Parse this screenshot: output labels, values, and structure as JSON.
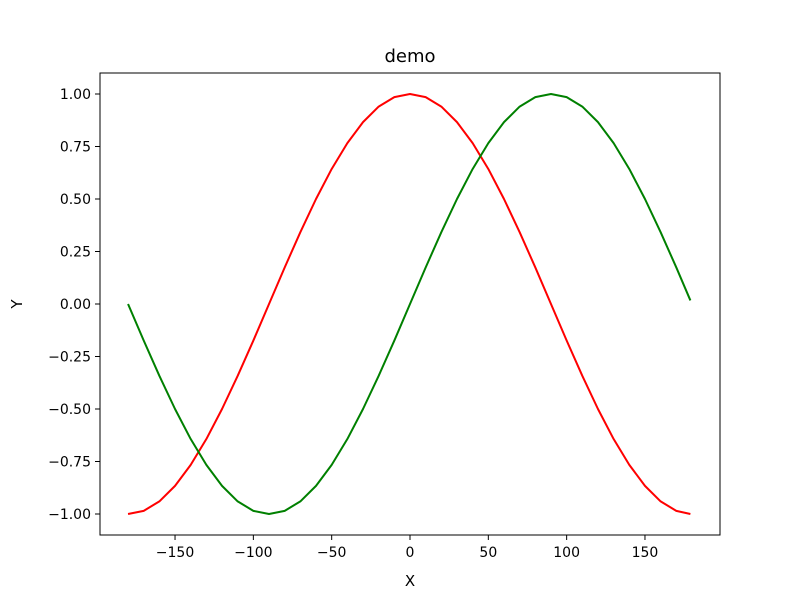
{
  "chart_data": {
    "type": "line",
    "title": "demo",
    "xlabel": "X",
    "ylabel": "Y",
    "xlim": [
      -197.9,
      197.9
    ],
    "ylim": [
      -1.1,
      1.1
    ],
    "xticks": [
      -150,
      -100,
      -50,
      0,
      50,
      100,
      150
    ],
    "xtick_labels": [
      "−150",
      "−100",
      "−50",
      "0",
      "50",
      "100",
      "150"
    ],
    "yticks": [
      -1.0,
      -0.75,
      -0.5,
      -0.25,
      0.0,
      0.25,
      0.5,
      0.75,
      1.0
    ],
    "ytick_labels": [
      "−1.00",
      "−0.75",
      "−0.50",
      "−0.25",
      "0.00",
      "0.25",
      "0.50",
      "0.75",
      "1.00"
    ],
    "grid": false,
    "series": [
      {
        "color": "#ff0000",
        "x": [
          -180,
          -170,
          -160,
          -150,
          -140,
          -130,
          -120,
          -110,
          -100,
          -90,
          -80,
          -70,
          -60,
          -50,
          -40,
          -30,
          -20,
          -10,
          0,
          10,
          20,
          30,
          40,
          50,
          60,
          70,
          80,
          90,
          100,
          110,
          120,
          130,
          140,
          150,
          160,
          170,
          179
        ],
        "y": [
          -1.0,
          -0.985,
          -0.94,
          -0.866,
          -0.766,
          -0.643,
          -0.5,
          -0.342,
          -0.174,
          0.0,
          0.174,
          0.342,
          0.5,
          0.643,
          0.766,
          0.866,
          0.94,
          0.985,
          1.0,
          0.985,
          0.94,
          0.866,
          0.766,
          0.643,
          0.5,
          0.342,
          0.174,
          0.0,
          -0.174,
          -0.342,
          -0.5,
          -0.643,
          -0.766,
          -0.866,
          -0.94,
          -0.985,
          -1.0
        ]
      },
      {
        "color": "#008000",
        "x": [
          -180,
          -170,
          -160,
          -150,
          -140,
          -130,
          -120,
          -110,
          -100,
          -90,
          -80,
          -70,
          -60,
          -50,
          -40,
          -30,
          -20,
          -10,
          0,
          10,
          20,
          30,
          40,
          50,
          60,
          70,
          80,
          90,
          100,
          110,
          120,
          130,
          140,
          150,
          160,
          170,
          179
        ],
        "y": [
          0.0,
          -0.174,
          -0.342,
          -0.5,
          -0.643,
          -0.766,
          -0.866,
          -0.94,
          -0.985,
          -1.0,
          -0.985,
          -0.94,
          -0.866,
          -0.766,
          -0.643,
          -0.5,
          -0.342,
          -0.174,
          0.0,
          0.174,
          0.342,
          0.5,
          0.643,
          0.766,
          0.866,
          0.94,
          0.985,
          1.0,
          0.985,
          0.94,
          0.866,
          0.766,
          0.643,
          0.5,
          0.342,
          0.174,
          0.017
        ]
      }
    ]
  }
}
